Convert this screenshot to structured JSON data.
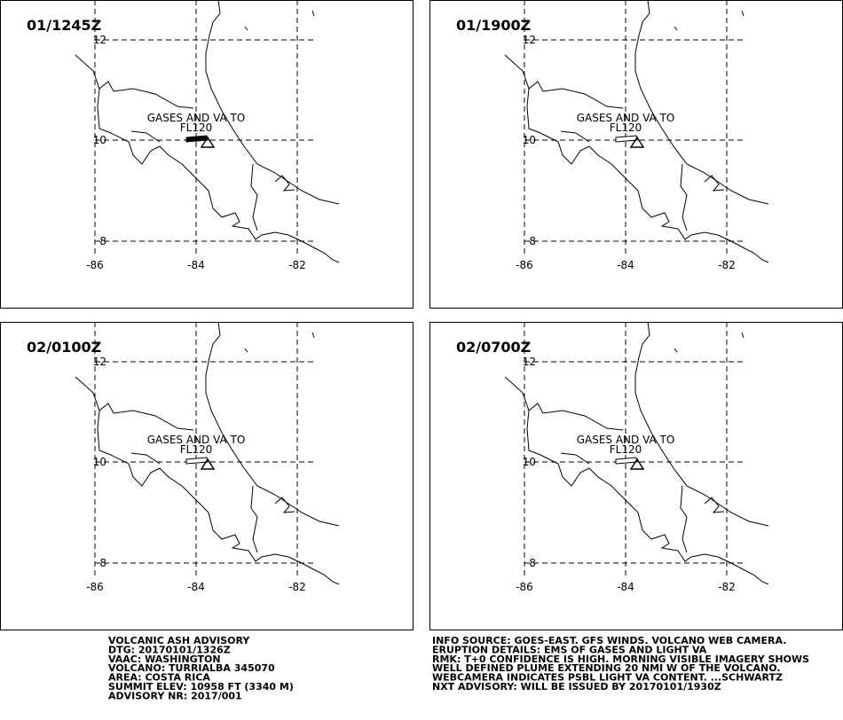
{
  "panels": [
    {
      "time": "01/1245Z",
      "label": [
        "GASES AND VA TO",
        "FL120"
      ]
    },
    {
      "time": "01/1900Z",
      "label": [
        "GASES AND VA TO",
        "FL120"
      ]
    },
    {
      "time": "02/0100Z",
      "label": [
        "GASES AND VA TO",
        "FL120"
      ]
    },
    {
      "time": "02/0700Z",
      "label": [
        "GASES AND VA TO",
        "FL120"
      ]
    }
  ],
  "grid": {
    "lat": [
      "12",
      "10",
      "8"
    ],
    "lon": [
      "-86",
      "-84",
      "-82"
    ]
  },
  "advisory": {
    "left": [
      "VOLCANIC ASH ADVISORY",
      "DTG: 20170101/1326Z",
      "VAAC: WASHINGTON",
      "VOLCANO: TURRIALBA 345070",
      "AREA: COSTA RICA",
      "SUMMIT ELEV: 10958 FT (3340 M)",
      "ADVISORY NR: 2017/001"
    ],
    "right": [
      "INFO SOURCE: GOES-EAST. GFS WINDS. VOLCANO WEB CAMERA.",
      "ERUPTION DETAILS: EMS OF GASES AND LIGHT VA",
      "RMK: T+0 CONFIDENCE IS HIGH. MORNING VISIBLE IMAGERY SHOWS",
      "WELL DEFINED PLUME EXTENDING 20 NMI W OF THE VOLCANO.",
      "WEBCAMERA INDICATES PSBL LIGHT VA CONTENT. ...SCHWARTZ",
      "NXT ADVISORY: WILL BE ISSUED BY 20170101/1930Z"
    ]
  }
}
